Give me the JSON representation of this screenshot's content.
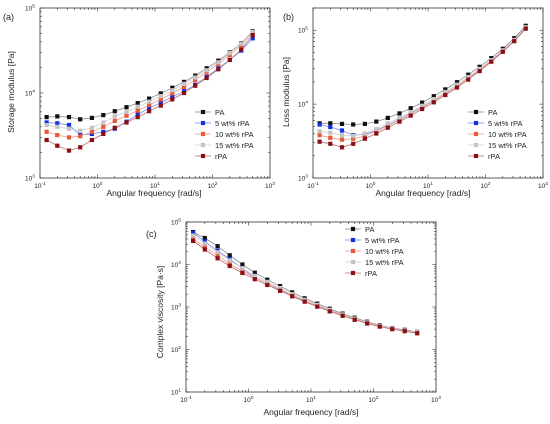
{
  "colors": {
    "PA": "#111111",
    "5 wt% rPA": "#1530e0",
    "10 wt% rPA": "#e8583a",
    "15 wt% rPA": "#c4c4c4",
    "rPA": "#8b0f14"
  },
  "line_colors": {
    "PA": "#8a8a8a",
    "5 wt% rPA": "#7c8ae8",
    "10 wt% rPA": "#ec9f8c",
    "15 wt% rPA": "#cfcfcf",
    "rPA": "#bb6a6e"
  },
  "chart_data": [
    {
      "panel": "(a)",
      "type": "scatter",
      "xlabel": "Angular frequency [rad/s]",
      "ylabel": "Storage modulus [Pa]",
      "xscale": "log",
      "yscale": "log",
      "xlim": [
        0.1,
        1000
      ],
      "ylim": [
        1000,
        100000
      ],
      "xticks": [
        {
          "v": 0.1,
          "b": "10",
          "e": "-1"
        },
        {
          "v": 1,
          "b": "10",
          "e": "0"
        },
        {
          "v": 10,
          "b": "10",
          "e": "1"
        },
        {
          "v": 100,
          "b": "10",
          "e": "2"
        },
        {
          "v": 1000,
          "b": "10",
          "e": "3"
        }
      ],
      "yticks": [
        {
          "v": 1000,
          "b": "10",
          "e": "3"
        },
        {
          "v": 10000,
          "b": "10",
          "e": "4"
        },
        {
          "v": 100000,
          "b": "10",
          "e": "5"
        }
      ],
      "legend": "bottom-right",
      "x": [
        0.13,
        0.2,
        0.32,
        0.5,
        0.8,
        1.26,
        2.0,
        3.2,
        5.0,
        7.9,
        12.6,
        20,
        32,
        50,
        79,
        126,
        200,
        316,
        501
      ],
      "series": [
        {
          "name": "PA",
          "values": [
            5200,
            5300,
            5200,
            4900,
            5100,
            5500,
            6100,
            6800,
            7600,
            8600,
            9900,
            11500,
            13500,
            16000,
            19500,
            24000,
            30000,
            38500,
            53000
          ]
        },
        {
          "name": "5 wt% rPA",
          "values": [
            4500,
            4400,
            4200,
            3200,
            3300,
            3500,
            3800,
            4600,
            5600,
            6600,
            7700,
            9000,
            10500,
            12500,
            15500,
            19500,
            24500,
            31500,
            44000
          ]
        },
        {
          "name": "10 wt% rPA",
          "values": [
            3500,
            3200,
            3000,
            3100,
            3500,
            4000,
            4700,
            5400,
            6200,
            7200,
            8400,
            9900,
            11800,
            14200,
            17500,
            22000,
            28000,
            36500,
            50000
          ]
        },
        {
          "name": "15 wt% rPA",
          "values": [
            4200,
            4000,
            3800,
            3600,
            3900,
            4500,
            5300,
            6000,
            6900,
            7900,
            9200,
            10800,
            12800,
            15200,
            18500,
            23000,
            29500,
            38000,
            52000
          ]
        },
        {
          "name": "rPA",
          "values": [
            2800,
            2400,
            2100,
            2300,
            2800,
            3300,
            3900,
            4500,
            5200,
            6100,
            7100,
            8400,
            10000,
            12200,
            15000,
            19000,
            24500,
            32500,
            48000
          ]
        }
      ]
    },
    {
      "panel": "(b)",
      "type": "scatter",
      "xlabel": "Angular frequency [rad/s]",
      "ylabel": "Loss modulus [Pa]",
      "xscale": "log",
      "yscale": "log",
      "xlim": [
        0.1,
        1000
      ],
      "ylim": [
        1000,
        200000
      ],
      "xticks": [
        {
          "v": 0.1,
          "b": "10",
          "e": "-1"
        },
        {
          "v": 1,
          "b": "10",
          "e": "0"
        },
        {
          "v": 10,
          "b": "10",
          "e": "1"
        },
        {
          "v": 100,
          "b": "10",
          "e": "2"
        },
        {
          "v": 1000,
          "b": "10",
          "e": "3"
        }
      ],
      "yticks": [
        {
          "v": 1000,
          "b": "10",
          "e": "3"
        },
        {
          "v": 10000,
          "b": "10",
          "e": "4"
        },
        {
          "v": 100000,
          "b": "10",
          "e": "5"
        }
      ],
      "legend": "bottom-right",
      "x": [
        0.13,
        0.2,
        0.32,
        0.5,
        0.8,
        1.26,
        2.0,
        3.2,
        5.0,
        7.9,
        12.6,
        20,
        32,
        50,
        79,
        126,
        200,
        316,
        501
      ],
      "series": [
        {
          "name": "PA",
          "values": [
            5500,
            5500,
            5400,
            5300,
            5400,
            5800,
            6500,
            7500,
            8800,
            10500,
            12800,
            15800,
            19800,
            25000,
            32000,
            42000,
            56000,
            78000,
            115000
          ]
        },
        {
          "name": "5 wt% rPA",
          "values": [
            5300,
            4900,
            4400,
            3800,
            3900,
            4400,
            5200,
            6200,
            7500,
            9100,
            11200,
            14000,
            17500,
            22500,
            29000,
            38500,
            52000,
            72000,
            108000
          ]
        },
        {
          "name": "10 wt% rPA",
          "values": [
            3800,
            3500,
            3300,
            3400,
            3700,
            4300,
            5100,
            6100,
            7400,
            9000,
            11100,
            13900,
            17500,
            22500,
            29000,
            38500,
            52000,
            72500,
            108000
          ]
        },
        {
          "name": "15 wt% rPA",
          "values": [
            4300,
            4100,
            3800,
            3700,
            4000,
            4600,
            5500,
            6500,
            7800,
            9500,
            11700,
            14600,
            18300,
            23300,
            30000,
            39500,
            53500,
            74000,
            110000
          ]
        },
        {
          "name": "rPA",
          "values": [
            3100,
            2900,
            2600,
            2900,
            3400,
            4000,
            4800,
            5800,
            7000,
            8600,
            10600,
            13300,
            16800,
            21500,
            28000,
            37500,
            51000,
            71000,
            105000
          ]
        }
      ]
    },
    {
      "panel": "(c)",
      "type": "scatter",
      "xlabel": "Angular frequency [rad/s]",
      "ylabel": "Complex viscosity [Pa·s]",
      "xscale": "log",
      "yscale": "log",
      "xlim": [
        0.1,
        1000
      ],
      "ylim": [
        10,
        100000
      ],
      "xticks": [
        {
          "v": 0.1,
          "b": "10",
          "e": "-1"
        },
        {
          "v": 1,
          "b": "10",
          "e": "0"
        },
        {
          "v": 10,
          "b": "10",
          "e": "1"
        },
        {
          "v": 100,
          "b": "10",
          "e": "2"
        },
        {
          "v": 1000,
          "b": "10",
          "e": "3"
        }
      ],
      "yticks": [
        {
          "v": 10,
          "b": "10",
          "e": "1"
        },
        {
          "v": 100,
          "b": "10",
          "e": "2"
        },
        {
          "v": 1000,
          "b": "10",
          "e": "3"
        },
        {
          "v": 10000,
          "b": "10",
          "e": "4"
        },
        {
          "v": 100000,
          "b": "10",
          "e": "5"
        }
      ],
      "legend": "top-right",
      "x": [
        0.13,
        0.2,
        0.32,
        0.5,
        0.8,
        1.26,
        2.0,
        3.2,
        5.0,
        7.9,
        12.6,
        20,
        32,
        50,
        79,
        126,
        200,
        316,
        501
      ],
      "series": [
        {
          "name": "PA",
          "values": [
            58000,
            42000,
            27000,
            16500,
            10000,
            6400,
            4400,
            3100,
            2200,
            1600,
            1200,
            910,
            700,
            560,
            450,
            370,
            320,
            290,
            260
          ]
        },
        {
          "name": "5 wt% rPA",
          "values": [
            55000,
            35000,
            21000,
            13500,
            8000,
            4900,
            3600,
            2500,
            1800,
            1350,
            1030,
            800,
            630,
            510,
            415,
            350,
            305,
            275,
            245
          ]
        },
        {
          "name": "10 wt% rPA",
          "values": [
            40000,
            26000,
            16500,
            10500,
            7000,
            4900,
            3600,
            2600,
            1900,
            1400,
            1070,
            830,
            650,
            520,
            425,
            355,
            310,
            278,
            250
          ]
        },
        {
          "name": "15 wt% rPA",
          "values": [
            48000,
            31000,
            19500,
            12500,
            8200,
            5400,
            3900,
            2800,
            2000,
            1480,
            1120,
            860,
            670,
            535,
            435,
            360,
            315,
            282,
            255
          ]
        },
        {
          "name": "rPA",
          "values": [
            36000,
            22500,
            14000,
            9200,
            6300,
            4500,
            3300,
            2400,
            1800,
            1340,
            1020,
            790,
            620,
            500,
            410,
            345,
            300,
            270,
            240
          ]
        }
      ]
    }
  ]
}
